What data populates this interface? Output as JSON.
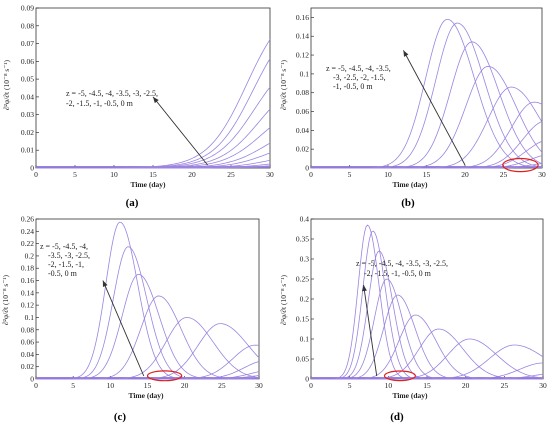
{
  "figure": {
    "panels": [
      {
        "label": "(a)",
        "chart_data": {
          "type": "line",
          "xlabel": "Time (day)",
          "ylabel": "∂²φ/∂t (10⁻⁸ s⁻¹)",
          "xlim": [
            0,
            30
          ],
          "ylim": [
            0,
            0.09
          ],
          "xticks": [
            "0",
            "5",
            "10",
            "15",
            "20",
            "25",
            "30"
          ],
          "yticks": [
            "0",
            "0.01",
            "0.02",
            "0.03",
            "0.04",
            "0.05",
            "0.06",
            "0.07",
            "0.08",
            "0.09"
          ],
          "annotation_lines": [
            "z = -5, -4.5, -4, -3.5, -3, -2.5,",
            "-2, -1.5, -1, -0.5, 0 m"
          ],
          "series": [
            {
              "type": "sigmoid",
              "amp": 0.094,
              "center": 27.0,
              "width": 2.5
            },
            {
              "type": "sigmoid",
              "amp": 0.087,
              "center": 27.8,
              "width": 2.5
            },
            {
              "type": "sigmoid",
              "amp": 0.066,
              "center": 28.0,
              "width": 2.5
            },
            {
              "type": "sigmoid",
              "amp": 0.052,
              "center": 28.6,
              "width": 2.5
            },
            {
              "type": "sigmoid",
              "amp": 0.038,
              "center": 29.0,
              "width": 2.5
            },
            {
              "type": "sigmoid",
              "amp": 0.026,
              "center": 29.6,
              "width": 2.5
            },
            {
              "type": "sigmoid",
              "amp": 0.017,
              "center": 30.0,
              "width": 2.5
            },
            {
              "type": "sigmoid",
              "amp": 0.009,
              "center": 30.2,
              "width": 2.5
            },
            {
              "type": "sigmoid",
              "amp": 0.005,
              "center": 30.5,
              "width": 2.5
            },
            {
              "type": "sigmoid",
              "amp": 0.003,
              "center": 30.8,
              "width": 2.5
            },
            {
              "type": "sigmoid",
              "amp": 0.0015,
              "center": 31.0,
              "width": 2.5
            }
          ],
          "arrow": {
            "from": [
              22,
              0.0
            ],
            "to": [
              15,
              0.04
            ]
          }
        }
      },
      {
        "label": "(b)",
        "chart_data": {
          "type": "line",
          "xlabel": "Time (day)",
          "ylabel": "∂²φ/∂t (10⁻⁸ s⁻¹)",
          "xlim": [
            0,
            30
          ],
          "ylim": [
            0,
            0.17
          ],
          "xticks": [
            "0",
            "5",
            "10",
            "15",
            "20",
            "25",
            "30"
          ],
          "yticks": [
            "0",
            "0.02",
            "0.04",
            "0.06",
            "0.08",
            "0.1",
            "0.12",
            "0.14",
            "0.16"
          ],
          "annotation_lines": [
            "z = -5, -4.5, -4, -3.5,",
            "-3, -2.5, -2, -1.5,",
            "-1, -0.5, 0 m"
          ],
          "series": [
            {
              "type": "peak",
              "amp": 0.158,
              "peak": 17.7,
              "width": 2.8
            },
            {
              "type": "peak",
              "amp": 0.154,
              "peak": 19.0,
              "width": 2.8
            },
            {
              "type": "peak",
              "amp": 0.134,
              "peak": 20.9,
              "width": 2.8
            },
            {
              "type": "peak",
              "amp": 0.108,
              "peak": 23.0,
              "width": 2.9
            },
            {
              "type": "peak",
              "amp": 0.086,
              "peak": 26.0,
              "width": 3.0
            },
            {
              "type": "peak",
              "amp": 0.07,
              "peak": 29.0,
              "width": 3.0
            },
            {
              "type": "peak",
              "amp": 0.05,
              "peak": 30.5,
              "width": 3.0
            },
            {
              "type": "peak",
              "amp": 0.03,
              "peak": 31.0,
              "width": 3.0
            },
            {
              "type": "peak",
              "amp": 0.015,
              "peak": 31.5,
              "width": 3.0
            },
            {
              "type": "peak",
              "amp": 0.006,
              "peak": 32.0,
              "width": 3.0
            },
            {
              "type": "peak",
              "amp": 0.002,
              "peak": 32.0,
              "width": 3.0
            }
          ],
          "arrow": {
            "from": [
              20,
              0.0
            ],
            "to": [
              12,
              0.125
            ]
          },
          "ellipse": {
            "cx": 27.2,
            "cy": 0.001,
            "rx": 2.3,
            "ry": 0.007
          }
        }
      },
      {
        "label": "(c)",
        "chart_data": {
          "type": "line",
          "xlabel": "Time (day)",
          "ylabel": "∂²φ/∂t (10⁻⁸ s⁻¹)",
          "xlim": [
            0,
            30
          ],
          "ylim": [
            0,
            0.26
          ],
          "xticks": [
            "0",
            "5",
            "10",
            "15",
            "20",
            "25",
            "30"
          ],
          "yticks": [
            "0",
            "0.02",
            "0.04",
            "0.06",
            "0.08",
            "0.1",
            "0.12",
            "0.14",
            "0.16",
            "0.18",
            "0.2",
            "0.22",
            "0.24",
            "0.26"
          ],
          "annotation_lines": [
            "z = -5, -4.5, -4,",
            "-3.5, -3, -2.5,",
            "-2, -1.5, -1,",
            "-0.5, 0 m"
          ],
          "series": [
            {
              "type": "peak",
              "amp": 0.255,
              "peak": 11.3,
              "width": 1.9
            },
            {
              "type": "peak",
              "amp": 0.215,
              "peak": 12.4,
              "width": 2.0
            },
            {
              "type": "peak",
              "amp": 0.17,
              "peak": 13.8,
              "width": 2.2
            },
            {
              "type": "peak",
              "amp": 0.135,
              "peak": 16.5,
              "width": 2.4
            },
            {
              "type": "peak",
              "amp": 0.1,
              "peak": 20.3,
              "width": 2.8
            },
            {
              "type": "peak",
              "amp": 0.09,
              "peak": 24.8,
              "width": 3.0
            },
            {
              "type": "peak",
              "amp": 0.055,
              "peak": 29.5,
              "width": 3.0
            },
            {
              "type": "peak",
              "amp": 0.03,
              "peak": 31.0,
              "width": 3.0
            },
            {
              "type": "peak",
              "amp": 0.015,
              "peak": 32.0,
              "width": 3.0
            },
            {
              "type": "peak",
              "amp": 0.007,
              "peak": 32.0,
              "width": 3.0
            },
            {
              "type": "peak",
              "amp": 0.003,
              "peak": 32.0,
              "width": 3.0
            }
          ],
          "arrow": {
            "from": [
              14.5,
              0.0
            ],
            "to": [
              9.0,
              0.16
            ]
          },
          "ellipse": {
            "cx": 17.3,
            "cy": 0.002,
            "rx": 2.3,
            "ry": 0.008
          }
        }
      },
      {
        "label": "(d)",
        "chart_data": {
          "type": "line",
          "xlabel": "Time (day)",
          "ylabel": "∂²φ/∂t (10⁻⁸ s⁻¹)",
          "xlim": [
            0,
            30
          ],
          "ylim": [
            0,
            0.4
          ],
          "xticks": [
            "0",
            "5",
            "10",
            "15",
            "20",
            "25",
            "30"
          ],
          "yticks": [
            "0",
            "0.05",
            "0.1",
            "0.15",
            "0.2",
            "0.25",
            "0.3",
            "0.35",
            "0.4"
          ],
          "annotation_lines": [
            "z = -5, -4.5, -4, -3.5, -3, -2.5,",
            "-2, -1.5, -1, -0.5, 0 m"
          ],
          "series": [
            {
              "type": "peak",
              "amp": 0.385,
              "peak": 7.3,
              "width": 1.2
            },
            {
              "type": "peak",
              "amp": 0.37,
              "peak": 8.0,
              "width": 1.3
            },
            {
              "type": "peak",
              "amp": 0.32,
              "peak": 8.8,
              "width": 1.4
            },
            {
              "type": "peak",
              "amp": 0.25,
              "peak": 9.8,
              "width": 1.6
            },
            {
              "type": "peak",
              "amp": 0.21,
              "peak": 11.2,
              "width": 1.8
            },
            {
              "type": "peak",
              "amp": 0.16,
              "peak": 13.5,
              "width": 2.1
            },
            {
              "type": "peak",
              "amp": 0.125,
              "peak": 16.5,
              "width": 2.5
            },
            {
              "type": "peak",
              "amp": 0.1,
              "peak": 20.5,
              "width": 2.8
            },
            {
              "type": "peak",
              "amp": 0.085,
              "peak": 26.3,
              "width": 3.2
            },
            {
              "type": "peak",
              "amp": 0.04,
              "peak": 30.0,
              "width": 3.0
            },
            {
              "type": "peak",
              "amp": 0.015,
              "peak": 32.0,
              "width": 3.0
            }
          ],
          "arrow": {
            "from": [
              8.5,
              0.0
            ],
            "to": [
              6.8,
              0.235
            ]
          },
          "ellipse": {
            "cx": 11.5,
            "cy": 0.003,
            "rx": 2.0,
            "ry": 0.012
          }
        }
      }
    ],
    "colors": {
      "curve": "#9b84e0",
      "baseline": "#8a6fd6",
      "axis": "#333333",
      "grid": "#cccccc",
      "arrow": "#333333",
      "ellipse": "#e02020"
    }
  }
}
